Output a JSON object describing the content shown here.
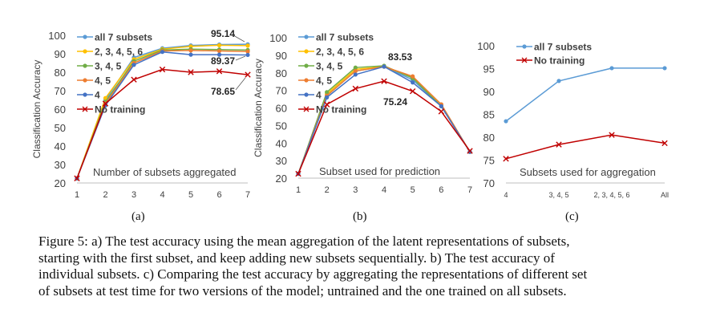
{
  "caption_lines": [
    "Figure 5: a) The test accuracy using the mean aggregation of the latent representations of subsets,",
    "starting with the first subset, and keep adding new subsets sequentially.  b) The test accuracy of",
    "individual subsets. c) Comparing the test accuracy by aggregating the representations of different set",
    "of subsets at test time for two versions of the model; untrained and the one trained on all subsets."
  ],
  "panel_labels": [
    "(a)",
    "(b)",
    "(c)"
  ],
  "colors": {
    "all7": "#5b9bd5",
    "s23456": "#ffc000",
    "s345": "#70ad47",
    "s45": "#ed7d31",
    "s4": "#4472c4",
    "notraining": "#c00000",
    "axis": "#bfbfbf",
    "text": "#404040"
  },
  "chart_data": [
    {
      "type": "line",
      "panel": "(a)",
      "xlabel": "Number of subsets aggregated",
      "ylabel": "Classification Accuracy",
      "x": [
        1,
        2,
        3,
        4,
        5,
        6,
        7
      ],
      "xticks": [
        "1",
        "2",
        "3",
        "4",
        "5",
        "6",
        "7"
      ],
      "yticks": [
        "20",
        "30",
        "40",
        "50",
        "60",
        "70",
        "80",
        "90",
        "100"
      ],
      "ylim": [
        20,
        100
      ],
      "grid": false,
      "legend": "top-left",
      "series": [
        {
          "name": "all 7 subsets",
          "color_key": "all7",
          "marker": "circle",
          "values": [
            22.5,
            65,
            88,
            93,
            94.5,
            95,
            95.14
          ]
        },
        {
          "name": "2, 3, 4, 5, 6",
          "color_key": "s23456",
          "marker": "circle",
          "values": [
            22.5,
            66,
            87,
            92.5,
            94,
            94.6,
            94.4
          ]
        },
        {
          "name": "3, 4, 5",
          "color_key": "s345",
          "marker": "circle",
          "values": [
            22.5,
            64,
            86,
            92,
            92.5,
            92.3,
            92
          ]
        },
        {
          "name": "4, 5",
          "color_key": "s45",
          "marker": "circle",
          "values": [
            22.5,
            63,
            85,
            91.5,
            91.8,
            91.5,
            91.2
          ]
        },
        {
          "name": "4",
          "color_key": "s4",
          "marker": "circle",
          "values": [
            22.5,
            62,
            84,
            91,
            89.5,
            89.5,
            89.37
          ]
        },
        {
          "name": "No training",
          "color_key": "notraining",
          "marker": "x",
          "values": [
            22.5,
            63,
            76,
            81.5,
            80,
            80.5,
            78.65
          ]
        }
      ],
      "annotations": [
        "95.14",
        "89.37",
        "78.65"
      ]
    },
    {
      "type": "line",
      "panel": "(b)",
      "xlabel": "Subset used for prediction",
      "ylabel": "Classification Accuracy",
      "x": [
        1,
        2,
        3,
        4,
        5,
        6,
        7
      ],
      "xticks": [
        "1",
        "2",
        "3",
        "4",
        "5",
        "6",
        "7"
      ],
      "yticks": [
        "20",
        "30",
        "40",
        "50",
        "60",
        "70",
        "80",
        "90",
        "100"
      ],
      "ylim": [
        20,
        100
      ],
      "grid": false,
      "legend": "top-left",
      "series": [
        {
          "name": "all 7 subsets",
          "color_key": "all7",
          "marker": "circle",
          "values": [
            22.5,
            67,
            81,
            83.53,
            76,
            61,
            35
          ]
        },
        {
          "name": "2, 3, 4, 5, 6",
          "color_key": "s23456",
          "marker": "circle",
          "values": [
            22.5,
            68,
            82,
            83.53,
            77.5,
            62,
            35
          ]
        },
        {
          "name": "3, 4, 5",
          "color_key": "s345",
          "marker": "circle",
          "values": [
            22.5,
            69,
            83,
            84,
            77,
            61,
            35
          ]
        },
        {
          "name": "4, 5",
          "color_key": "s45",
          "marker": "circle",
          "values": [
            22.5,
            67,
            81,
            83.53,
            78,
            62,
            35
          ]
        },
        {
          "name": "4",
          "color_key": "s4",
          "marker": "circle",
          "values": [
            22.5,
            66,
            79,
            83.53,
            74.5,
            61,
            35
          ]
        },
        {
          "name": "No training",
          "color_key": "notraining",
          "marker": "x",
          "values": [
            22.5,
            62,
            71,
            75.24,
            69.5,
            58,
            35.5
          ]
        }
      ],
      "annotations": [
        "83.53",
        "75.24"
      ]
    },
    {
      "type": "line",
      "panel": "(c)",
      "xlabel": "Subsets used for aggregation",
      "ylabel": "",
      "categories": [
        "4",
        "3, 4, 5",
        "2, 3, 4, 5, 6",
        "All"
      ],
      "yticks": [
        "70",
        "75",
        "80",
        "85",
        "90",
        "95",
        "100"
      ],
      "ylim": [
        70,
        100
      ],
      "grid": false,
      "legend": "top-left",
      "series": [
        {
          "name": "all 7 subsets",
          "color_key": "all7",
          "marker": "circle",
          "values": [
            83.5,
            92.3,
            95.1,
            95.1
          ]
        },
        {
          "name": "No training",
          "color_key": "notraining",
          "marker": "x",
          "values": [
            75.3,
            78.4,
            80.5,
            78.7
          ]
        }
      ]
    }
  ]
}
